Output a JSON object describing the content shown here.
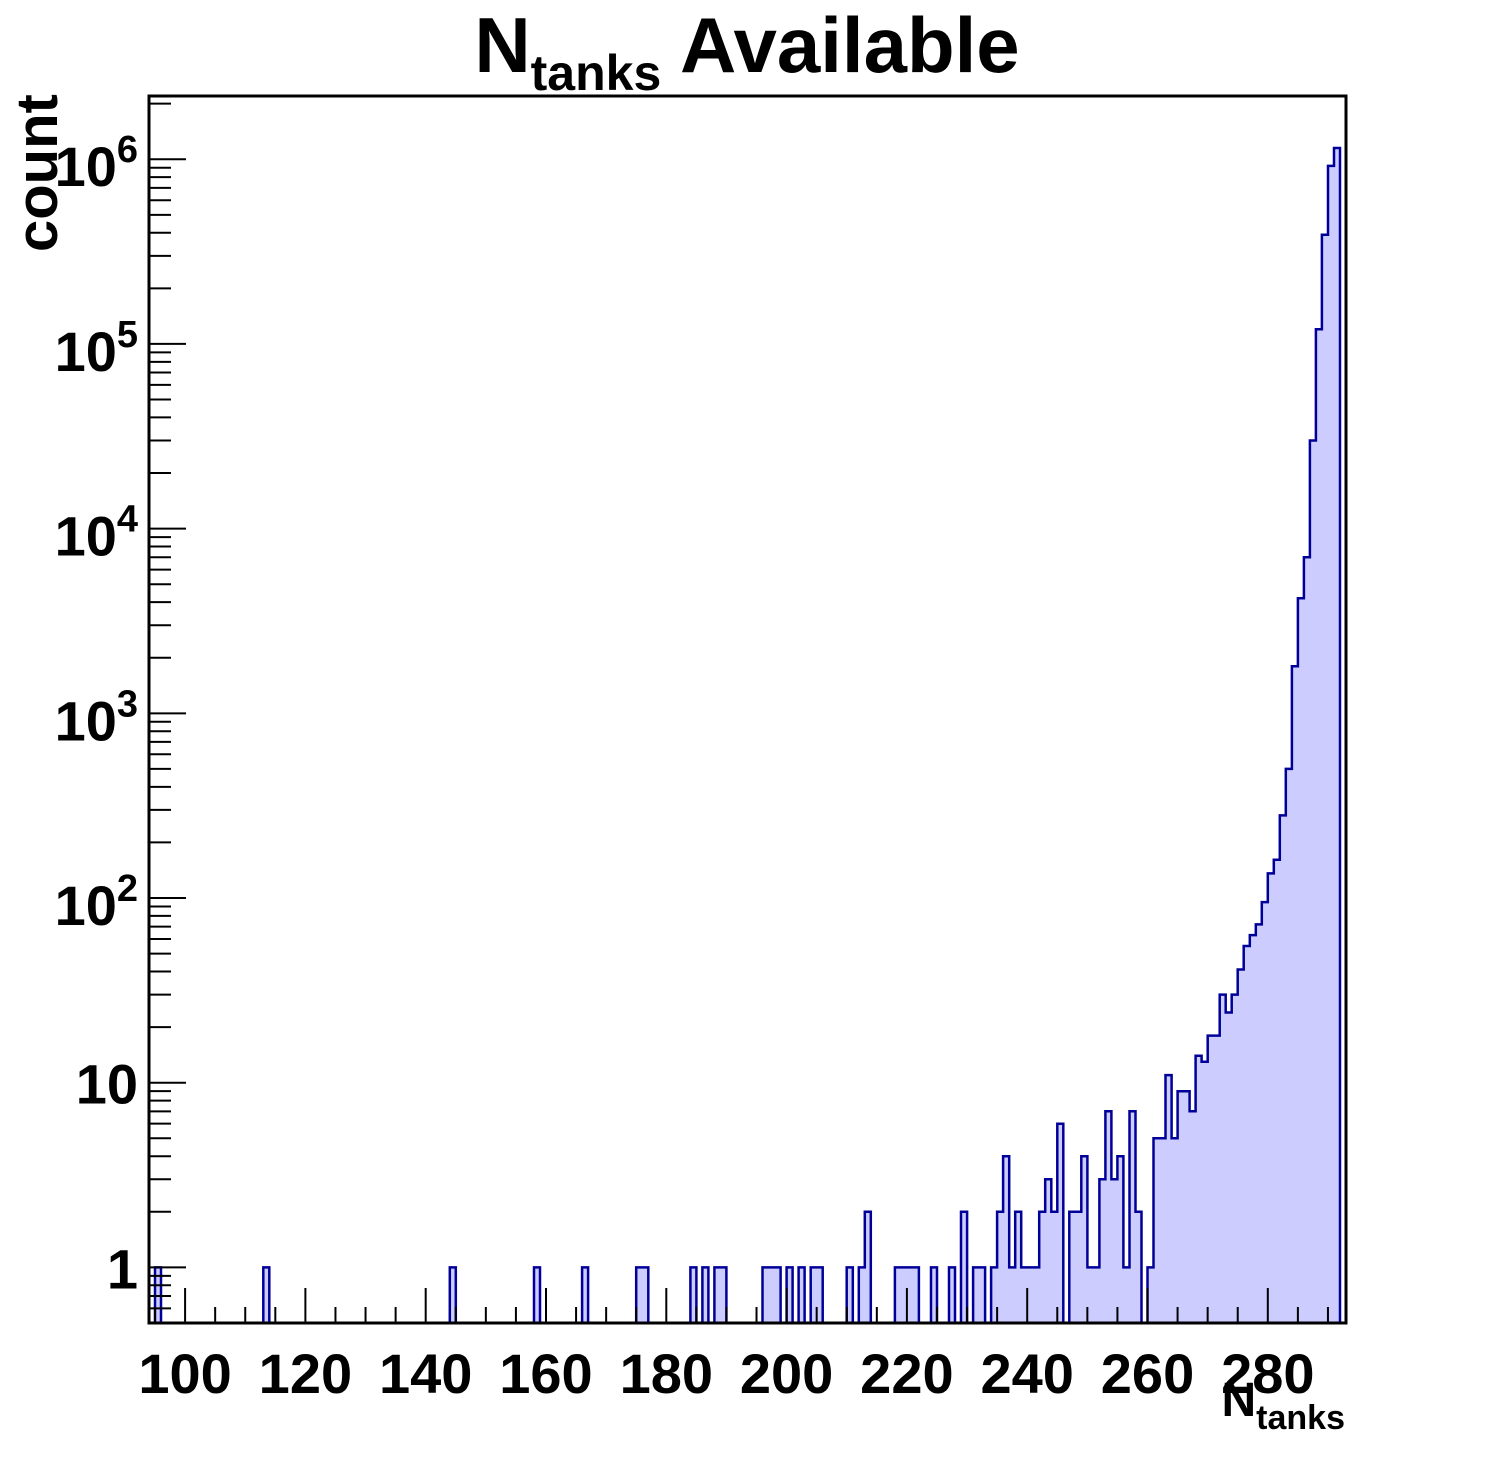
{
  "page": {
    "background": "#ffffff"
  },
  "title": {
    "prefix": "N",
    "subscript": "tanks",
    "suffix": " Available"
  },
  "axes": {
    "x": {
      "title_prefix": "N",
      "title_subscript": "tanks",
      "scale": "linear",
      "min": 94,
      "max": 293,
      "major_ticks": [
        100,
        120,
        140,
        160,
        180,
        200,
        220,
        240,
        260,
        280
      ],
      "minor_tick_step": 5
    },
    "y": {
      "title": "count",
      "scale": "log",
      "min": 0.5,
      "max": 2200000,
      "major_ticks": [
        1,
        10,
        100,
        1000,
        10000,
        100000,
        1000000
      ],
      "tick_label_style": "power-of-ten"
    }
  },
  "colors": {
    "hist_fill": "#ccccff",
    "hist_line": "#000099",
    "axis_line": "#000000",
    "text": "#000000",
    "background": "#ffffff"
  },
  "chart_data": {
    "type": "bar",
    "title": "N_{tanks} Available",
    "xlabel": "N_{tanks}",
    "ylabel": "count",
    "grid": false,
    "legend": "none",
    "bin_width": 1,
    "x_range": [
      94,
      293
    ],
    "y_range": [
      0.5,
      2200000
    ],
    "bins": [
      [
        95,
        1
      ],
      [
        113,
        1
      ],
      [
        144,
        1
      ],
      [
        158,
        1
      ],
      [
        166,
        1
      ],
      [
        175,
        1
      ],
      [
        176,
        1
      ],
      [
        184,
        1
      ],
      [
        186,
        1
      ],
      [
        188,
        1
      ],
      [
        189,
        1
      ],
      [
        196,
        1
      ],
      [
        197,
        1
      ],
      [
        198,
        1
      ],
      [
        200,
        1
      ],
      [
        202,
        1
      ],
      [
        204,
        1
      ],
      [
        205,
        1
      ],
      [
        210,
        1
      ],
      [
        212,
        1
      ],
      [
        213,
        2
      ],
      [
        218,
        1
      ],
      [
        219,
        1
      ],
      [
        220,
        1
      ],
      [
        221,
        1
      ],
      [
        224,
        1
      ],
      [
        227,
        1
      ],
      [
        229,
        2
      ],
      [
        231,
        1
      ],
      [
        232,
        1
      ],
      [
        234,
        1
      ],
      [
        235,
        2
      ],
      [
        236,
        4
      ],
      [
        237,
        1
      ],
      [
        238,
        2
      ],
      [
        239,
        1
      ],
      [
        240,
        1
      ],
      [
        241,
        1
      ],
      [
        242,
        2
      ],
      [
        243,
        3
      ],
      [
        244,
        2
      ],
      [
        245,
        6
      ],
      [
        247,
        2
      ],
      [
        248,
        2
      ],
      [
        249,
        4
      ],
      [
        250,
        1
      ],
      [
        251,
        1
      ],
      [
        252,
        3
      ],
      [
        253,
        7
      ],
      [
        254,
        3
      ],
      [
        255,
        4
      ],
      [
        256,
        1
      ],
      [
        257,
        7
      ],
      [
        258,
        2
      ],
      [
        260,
        1
      ],
      [
        261,
        5
      ],
      [
        262,
        5
      ],
      [
        263,
        11
      ],
      [
        264,
        5
      ],
      [
        265,
        9
      ],
      [
        266,
        9
      ],
      [
        267,
        7
      ],
      [
        268,
        14
      ],
      [
        269,
        13
      ],
      [
        270,
        18
      ],
      [
        271,
        18
      ],
      [
        272,
        30
      ],
      [
        273,
        24
      ],
      [
        274,
        30
      ],
      [
        275,
        41
      ],
      [
        276,
        55
      ],
      [
        277,
        63
      ],
      [
        278,
        72
      ],
      [
        279,
        95
      ],
      [
        280,
        136
      ],
      [
        281,
        161
      ],
      [
        282,
        280
      ],
      [
        283,
        500
      ],
      [
        284,
        1800
      ],
      [
        285,
        4200
      ],
      [
        286,
        7000
      ],
      [
        287,
        30000
      ],
      [
        288,
        120000
      ],
      [
        289,
        390000
      ],
      [
        290,
        920000
      ],
      [
        291,
        1150000
      ]
    ]
  }
}
